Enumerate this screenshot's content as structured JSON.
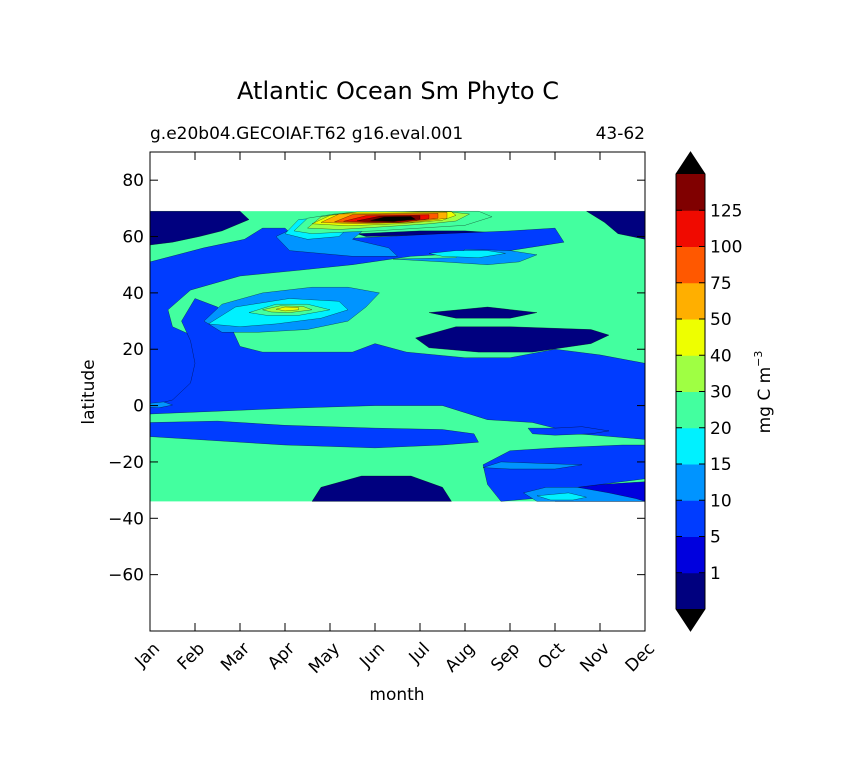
{
  "chart_data": {
    "type": "heatmap",
    "title": "Atlantic Ocean Sm Phyto C",
    "subtitle_left": "g.e20b04.GECOIAF.T62 g16.eval.001",
    "subtitle_right": "43-62",
    "xlabel": "month",
    "ylabel": "latitude",
    "x_categories": [
      "Jan",
      "Feb",
      "Mar",
      "Apr",
      "May",
      "Jun",
      "Jul",
      "Aug",
      "Sep",
      "Oct",
      "Nov",
      "Dec"
    ],
    "xlim": [
      0,
      11
    ],
    "ylim": [
      -80,
      90
    ],
    "y_ticks": [
      80,
      60,
      40,
      20,
      0,
      -20,
      -40,
      -60
    ],
    "data_lat_range": [
      -34,
      69
    ],
    "colorbar": {
      "label": "mg C m",
      "label_sup": "−3",
      "levels": [
        0,
        1,
        5,
        10,
        15,
        20,
        30,
        40,
        50,
        75,
        100,
        125,
        150
      ],
      "tick_labels": [
        "1",
        "5",
        "10",
        "15",
        "20",
        "30",
        "40",
        "50",
        "75",
        "100",
        "125"
      ],
      "colors": [
        "#00007f",
        "#0000de",
        "#003cff",
        "#0094ff",
        "#00f1ff",
        "#43ff9f",
        "#9fff43",
        "#eeff00",
        "#ffaf00",
        "#ff5800",
        "#f00a00",
        "#800000"
      ],
      "extend_low_color": "#000000",
      "extend_high_color": "#000000"
    },
    "background_level": 5,
    "regions": [
      {
        "level": 0,
        "points": [
          [
            0,
            69
          ],
          [
            2,
            69
          ],
          [
            2.2,
            66
          ],
          [
            1.6,
            62
          ],
          [
            1.1,
            60
          ],
          [
            0.5,
            58
          ],
          [
            0,
            57
          ]
        ]
      },
      {
        "level": 0,
        "points": [
          [
            9.7,
            69
          ],
          [
            11,
            69
          ],
          [
            11,
            59
          ],
          [
            10.4,
            61
          ],
          [
            10.1,
            65
          ]
        ]
      },
      {
        "level": 0,
        "points": [
          [
            0,
            45
          ],
          [
            0.5,
            44
          ],
          [
            0.7,
            40
          ],
          [
            0.4,
            37
          ],
          [
            0,
            35
          ]
        ]
      },
      {
        "level": 0,
        "points": [
          [
            4.6,
            61
          ],
          [
            6,
            62
          ],
          [
            7,
            62
          ],
          [
            8,
            61
          ],
          [
            7.5,
            60
          ],
          [
            6,
            60.5
          ],
          [
            4.8,
            60
          ]
        ]
      },
      {
        "level": 0,
        "points": [
          [
            5.9,
            24
          ],
          [
            6.8,
            28
          ],
          [
            8,
            28
          ],
          [
            9.8,
            27
          ],
          [
            10.2,
            25
          ],
          [
            9.8,
            22
          ],
          [
            8.5,
            19
          ],
          [
            7.3,
            19
          ],
          [
            6.2,
            20.5
          ]
        ]
      },
      {
        "level": 0,
        "points": [
          [
            6.2,
            33
          ],
          [
            7.5,
            35
          ],
          [
            8.6,
            33
          ],
          [
            8,
            31
          ],
          [
            6.8,
            31
          ]
        ]
      },
      {
        "level": 0,
        "points": [
          [
            3.8,
            -29
          ],
          [
            4.7,
            -25
          ],
          [
            5.8,
            -25
          ],
          [
            6.5,
            -29
          ],
          [
            6.7,
            -34
          ],
          [
            3.6,
            -34
          ]
        ]
      },
      {
        "level": 1,
        "points": [
          [
            9,
            -30
          ],
          [
            10,
            -28
          ],
          [
            11,
            -27
          ],
          [
            11,
            -34
          ],
          [
            9,
            -34
          ]
        ]
      },
      {
        "level": 2,
        "points": [
          [
            0,
            51
          ],
          [
            1.2,
            56
          ],
          [
            2.1,
            59
          ],
          [
            2.5,
            63
          ],
          [
            3,
            63
          ],
          [
            3.2,
            60
          ],
          [
            4,
            59
          ],
          [
            6.5,
            61
          ],
          [
            8,
            62
          ],
          [
            9,
            63
          ],
          [
            9.2,
            58
          ],
          [
            8,
            55
          ],
          [
            7,
            54
          ],
          [
            5.8,
            53
          ],
          [
            4.5,
            50
          ],
          [
            3.3,
            48
          ],
          [
            2,
            46
          ],
          [
            0.9,
            41
          ],
          [
            0.4,
            34
          ],
          [
            0.5,
            28
          ],
          [
            1.2,
            23
          ],
          [
            1.5,
            18
          ],
          [
            1.5,
            10
          ],
          [
            1.2,
            5
          ],
          [
            0.7,
            -1
          ],
          [
            0,
            -3
          ]
        ]
      },
      {
        "level": 2,
        "points": [
          [
            0,
            -3
          ],
          [
            1.5,
            -2
          ],
          [
            3,
            -1
          ],
          [
            5,
            0
          ],
          [
            6.5,
            0
          ],
          [
            7.5,
            -5
          ],
          [
            8.5,
            -6
          ],
          [
            9.5,
            -10
          ],
          [
            11,
            -12
          ],
          [
            11,
            15
          ],
          [
            10,
            18
          ],
          [
            9,
            20
          ],
          [
            8,
            17
          ],
          [
            7,
            17
          ],
          [
            5.7,
            19
          ],
          [
            5,
            22
          ],
          [
            4.5,
            19
          ],
          [
            3.5,
            19
          ],
          [
            2.5,
            19
          ],
          [
            2,
            21
          ],
          [
            1.8,
            28
          ],
          [
            1.5,
            35
          ],
          [
            1,
            38
          ],
          [
            0.7,
            30
          ],
          [
            0.9,
            23
          ],
          [
            1,
            15
          ],
          [
            0.9,
            8
          ],
          [
            0.5,
            2
          ],
          [
            0,
            0
          ]
        ]
      },
      {
        "level": 2,
        "points": [
          [
            0,
            -6
          ],
          [
            1.5,
            -5.5
          ],
          [
            3,
            -7
          ],
          [
            5,
            -8
          ],
          [
            6.5,
            -8.5
          ],
          [
            7.2,
            -10
          ],
          [
            7.3,
            -13
          ],
          [
            6.5,
            -14
          ],
          [
            5,
            -15
          ],
          [
            3,
            -14
          ],
          [
            1,
            -12
          ],
          [
            0,
            -11
          ]
        ]
      },
      {
        "level": 2,
        "points": [
          [
            7.4,
            -21
          ],
          [
            8,
            -16
          ],
          [
            9,
            -15
          ],
          [
            10.5,
            -14
          ],
          [
            11,
            -14
          ],
          [
            11,
            -26
          ],
          [
            10,
            -28
          ],
          [
            9,
            -30
          ],
          [
            8.5,
            -33
          ],
          [
            7.8,
            -34
          ],
          [
            7.5,
            -28
          ]
        ]
      },
      {
        "level": 2,
        "points": [
          [
            8.4,
            -8
          ],
          [
            9,
            -8
          ],
          [
            9.6,
            -7.5
          ],
          [
            10.2,
            -9
          ],
          [
            9.8,
            -10
          ],
          [
            9,
            -10.5
          ],
          [
            8.5,
            -10
          ]
        ]
      },
      {
        "level": 3,
        "points": [
          [
            1.2,
            30
          ],
          [
            1.6,
            36
          ],
          [
            2.5,
            40
          ],
          [
            3.6,
            42
          ],
          [
            4.4,
            42
          ],
          [
            5.1,
            40
          ],
          [
            4.8,
            35
          ],
          [
            4.4,
            30
          ],
          [
            3.5,
            27
          ],
          [
            2.4,
            26
          ],
          [
            1.6,
            26
          ]
        ]
      },
      {
        "level": 3,
        "points": [
          [
            2.8,
            60
          ],
          [
            3.1,
            55
          ],
          [
            4.5,
            53
          ],
          [
            5.5,
            53
          ],
          [
            5.3,
            56
          ],
          [
            4.5,
            59
          ],
          [
            4.8,
            63
          ],
          [
            4,
            64
          ],
          [
            3.2,
            63
          ]
        ]
      },
      {
        "level": 3,
        "points": [
          [
            5.4,
            52
          ],
          [
            6.8,
            52.5
          ],
          [
            7,
            55.5
          ],
          [
            8,
            55
          ],
          [
            8.6,
            53.5
          ],
          [
            8.2,
            51
          ],
          [
            7.5,
            50
          ],
          [
            6.5,
            51
          ]
        ]
      },
      {
        "level": 3,
        "points": [
          [
            7.4,
            -22
          ],
          [
            7.8,
            -20
          ],
          [
            8.7,
            -20.5
          ],
          [
            9.6,
            -21
          ],
          [
            9,
            -22.5
          ],
          [
            8,
            -22.5
          ]
        ]
      },
      {
        "level": 3,
        "points": [
          [
            8.3,
            -31
          ],
          [
            8.8,
            -29
          ],
          [
            9.5,
            -29
          ],
          [
            10.2,
            -31
          ],
          [
            10.8,
            -33
          ],
          [
            11,
            -34
          ],
          [
            8.6,
            -34
          ]
        ]
      },
      {
        "level": 3,
        "points": [
          [
            0,
            0.8
          ],
          [
            0.3,
            1.3
          ],
          [
            0.5,
            0.2
          ],
          [
            0.2,
            -0.8
          ],
          [
            0,
            -0.6
          ]
        ]
      },
      {
        "level": 4,
        "points": [
          [
            1.3,
            29
          ],
          [
            1.9,
            35
          ],
          [
            3.1,
            38
          ],
          [
            4.2,
            37
          ],
          [
            4.4,
            34
          ],
          [
            3.8,
            31
          ],
          [
            2.8,
            29
          ],
          [
            2,
            28
          ]
        ]
      },
      {
        "level": 4,
        "points": [
          [
            3,
            61
          ],
          [
            3.3,
            66
          ],
          [
            4,
            67
          ],
          [
            4.4,
            63
          ],
          [
            4.2,
            60
          ],
          [
            3.5,
            59
          ]
        ]
      },
      {
        "level": 4,
        "points": [
          [
            6.2,
            54
          ],
          [
            6.8,
            55
          ],
          [
            7.5,
            55
          ],
          [
            7.9,
            54
          ],
          [
            7.3,
            52.5
          ],
          [
            6.5,
            53
          ]
        ]
      },
      {
        "level": 4,
        "points": [
          [
            8.6,
            -32
          ],
          [
            9.3,
            -31
          ],
          [
            9.7,
            -32.5
          ],
          [
            9.4,
            -33.5
          ],
          [
            8.9,
            -33.5
          ]
        ]
      },
      {
        "level": 5,
        "points": [
          [
            2.2,
            33
          ],
          [
            2.8,
            36
          ],
          [
            3.5,
            36
          ],
          [
            4,
            34
          ],
          [
            3.3,
            32
          ],
          [
            2.6,
            32
          ]
        ]
      },
      {
        "level": 5,
        "points": [
          [
            3.2,
            62
          ],
          [
            3.5,
            66.5
          ],
          [
            4.1,
            68
          ],
          [
            5,
            68.5
          ],
          [
            6,
            69
          ],
          [
            7.3,
            69
          ],
          [
            7.6,
            67
          ],
          [
            7,
            64
          ],
          [
            6,
            63
          ],
          [
            5,
            62
          ],
          [
            4.2,
            61.5
          ],
          [
            3.6,
            61
          ]
        ]
      },
      {
        "level": 6,
        "points": [
          [
            2.5,
            34
          ],
          [
            2.9,
            35.4
          ],
          [
            3.4,
            35.2
          ],
          [
            3.6,
            34
          ],
          [
            3.1,
            33
          ],
          [
            2.7,
            33.2
          ]
        ]
      },
      {
        "level": 6,
        "points": [
          [
            3.5,
            63
          ],
          [
            3.8,
            67
          ],
          [
            4.4,
            68.5
          ],
          [
            6.5,
            69
          ],
          [
            7.1,
            68
          ],
          [
            6.8,
            65.5
          ],
          [
            6.2,
            64.5
          ],
          [
            5.2,
            63.5
          ],
          [
            4.2,
            62.5
          ]
        ]
      },
      {
        "level": 7,
        "points": [
          [
            2.8,
            34.2
          ],
          [
            3,
            35
          ],
          [
            3.3,
            34.8
          ],
          [
            3.3,
            34
          ],
          [
            3,
            33.6
          ]
        ]
      },
      {
        "level": 7,
        "points": [
          [
            3.6,
            64.5
          ],
          [
            4,
            67.5
          ],
          [
            4.6,
            68.7
          ],
          [
            6.7,
            68.8
          ],
          [
            6.8,
            67.5
          ],
          [
            6.5,
            65.8
          ],
          [
            5.6,
            64.6
          ],
          [
            4.4,
            63.8
          ]
        ]
      },
      {
        "level": 8,
        "points": [
          [
            3.8,
            65
          ],
          [
            4.2,
            68
          ],
          [
            6.6,
            68.6
          ],
          [
            6.6,
            66.5
          ],
          [
            5.8,
            65
          ],
          [
            4.6,
            64.5
          ]
        ]
      },
      {
        "level": 9,
        "points": [
          [
            4.1,
            65.2
          ],
          [
            4.5,
            67.8
          ],
          [
            6.4,
            68.2
          ],
          [
            6.4,
            66.5
          ],
          [
            5.6,
            65
          ],
          [
            4.8,
            64.9
          ]
        ]
      },
      {
        "level": 10,
        "points": [
          [
            4.3,
            65.4
          ],
          [
            4.8,
            67.4
          ],
          [
            6.2,
            67.7
          ],
          [
            6.2,
            66.3
          ],
          [
            5.5,
            65
          ],
          [
            5,
            65
          ]
        ]
      },
      {
        "level": 11,
        "points": [
          [
            4.6,
            65.6
          ],
          [
            5.1,
            67.2
          ],
          [
            6,
            67.4
          ],
          [
            6,
            66.2
          ],
          [
            5.4,
            65.2
          ],
          [
            5,
            65.2
          ]
        ]
      },
      {
        "level": 12,
        "points": [
          [
            4.9,
            65.7
          ],
          [
            5.2,
            66.9
          ],
          [
            5.8,
            67.1
          ],
          [
            5.9,
            66.1
          ],
          [
            5.4,
            65.4
          ]
        ]
      }
    ]
  }
}
